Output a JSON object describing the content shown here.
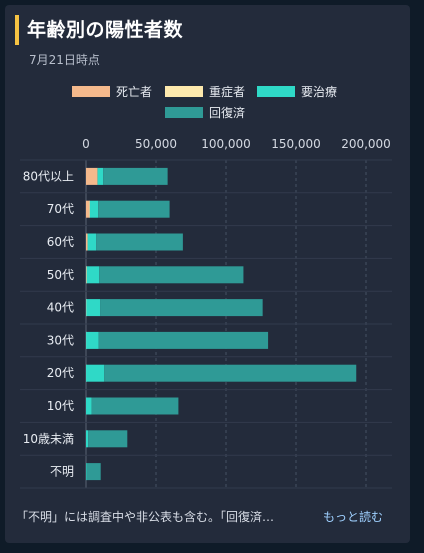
{
  "header": {
    "title": "年齢別の陽性者数",
    "as_of": "7月21日時点"
  },
  "colors": {
    "accent": "#f6c343",
    "death": "#f4b98c",
    "severe": "#fde9ad",
    "treatment": "#2fd9c7",
    "recovered": "#2f9a96"
  },
  "chart_data": {
    "type": "bar",
    "orientation": "horizontal",
    "stacked": true,
    "title": "年齢別の陽性者数",
    "xlim": [
      0,
      200000
    ],
    "x_ticks": [
      "0",
      "50,000",
      "100,000",
      "150,000",
      "200,000"
    ],
    "categories": [
      "80代以上",
      "70代",
      "60代",
      "50代",
      "40代",
      "30代",
      "20代",
      "10代",
      "10歳未満",
      "不明"
    ],
    "legend_position": "top",
    "grid": true,
    "series": [
      {
        "name": "死亡者",
        "color": "#f4b98c",
        "values": [
          8000,
          2500,
          1000,
          300,
          100,
          30,
          10,
          0,
          0,
          0
        ]
      },
      {
        "name": "重症者",
        "color": "#fde9ad",
        "values": [
          300,
          200,
          200,
          150,
          80,
          30,
          20,
          0,
          0,
          0
        ]
      },
      {
        "name": "要治療",
        "color": "#2fd9c7",
        "values": [
          4000,
          6000,
          6000,
          9000,
          10000,
          9000,
          13000,
          4000,
          1500,
          500
        ]
      },
      {
        "name": "回復済",
        "color": "#2f9a96",
        "values": [
          46000,
          51000,
          62000,
          103000,
          116000,
          121000,
          180000,
          62000,
          28000,
          10000
        ]
      }
    ]
  },
  "footer": {
    "note": "「不明」には調査中や非公表も含む。「回復済…",
    "more_label": "もっと読む"
  }
}
